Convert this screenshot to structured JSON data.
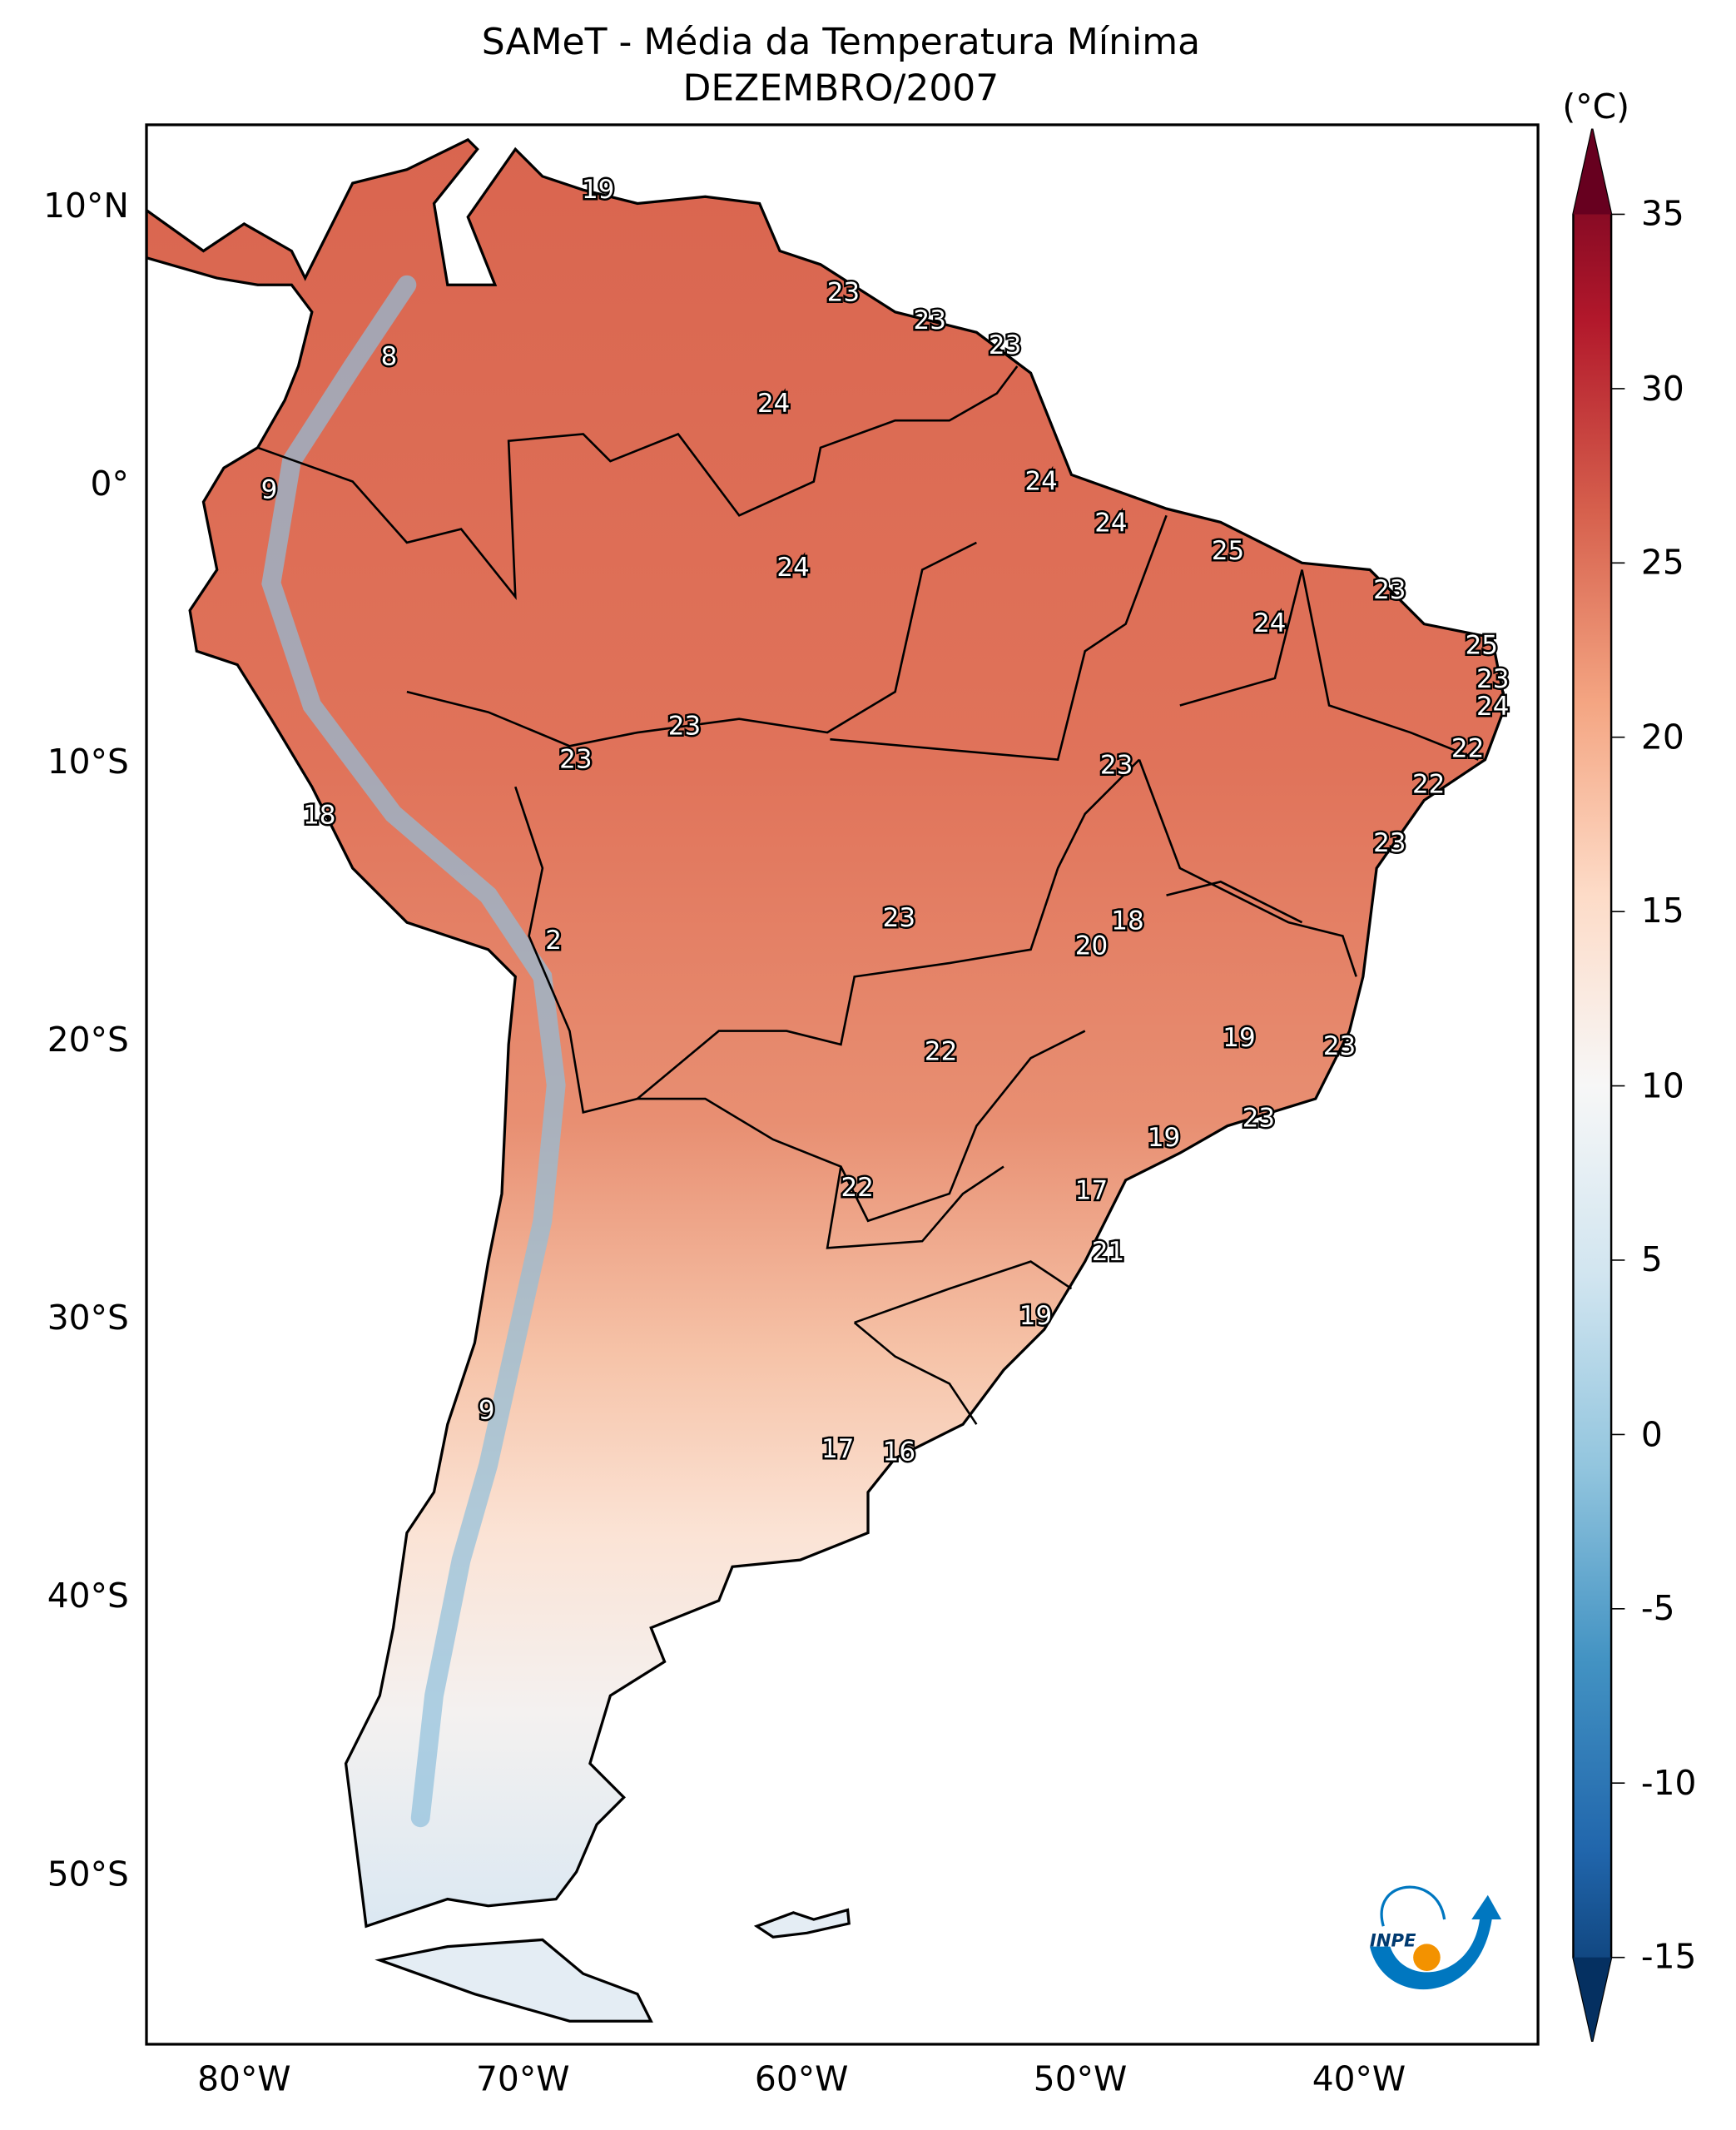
{
  "title": "SAMeT - Média da Temperatura Mínima",
  "subtitle": "DEZEMBRO/2007",
  "colorbar": {
    "unit_label": "(°C)",
    "range": [
      -15,
      35
    ],
    "extend": "both",
    "colormap": "RdBu_r",
    "ticks": [
      "35",
      "30",
      "25",
      "20",
      "15",
      "10",
      "5",
      "0",
      "-5",
      "-10",
      "-15"
    ]
  },
  "axes": {
    "lat_ticks": [
      "10°N",
      "0°",
      "10°S",
      "20°S",
      "30°S",
      "40°S",
      "50°S"
    ],
    "lon_ticks": [
      "80°W",
      "70°W",
      "60°W",
      "50°W",
      "40°W"
    ],
    "lon_range": [
      -83.5,
      -33.6
    ],
    "lat_range": [
      -56,
      13
    ]
  },
  "stations": [
    {
      "value": "19",
      "lon": -67.3,
      "lat": 10.6
    },
    {
      "value": "23",
      "lon": -58.5,
      "lat": 6.9
    },
    {
      "value": "23",
      "lon": -55.4,
      "lat": 5.9
    },
    {
      "value": "23",
      "lon": -52.7,
      "lat": 5.0
    },
    {
      "value": "8",
      "lon": -74.8,
      "lat": 4.6
    },
    {
      "value": "24",
      "lon": -61.0,
      "lat": 2.9
    },
    {
      "value": "9",
      "lon": -79.1,
      "lat": -0.2
    },
    {
      "value": "24",
      "lon": -51.4,
      "lat": 0.1
    },
    {
      "value": "24",
      "lon": -48.9,
      "lat": -1.4
    },
    {
      "value": "25",
      "lon": -44.7,
      "lat": -2.4
    },
    {
      "value": "24",
      "lon": -60.3,
      "lat": -3.0
    },
    {
      "value": "23",
      "lon": -38.9,
      "lat": -3.8
    },
    {
      "value": "24",
      "lon": -43.2,
      "lat": -5.0
    },
    {
      "value": "25",
      "lon": -35.6,
      "lat": -5.8
    },
    {
      "value": "23",
      "lon": -35.2,
      "lat": -7.0
    },
    {
      "value": "24",
      "lon": -35.2,
      "lat": -8.0
    },
    {
      "value": "23",
      "lon": -64.2,
      "lat": -8.7
    },
    {
      "value": "23",
      "lon": -68.1,
      "lat": -9.9
    },
    {
      "value": "22",
      "lon": -36.1,
      "lat": -9.5
    },
    {
      "value": "23",
      "lon": -48.7,
      "lat": -10.1
    },
    {
      "value": "22",
      "lon": -37.5,
      "lat": -10.8
    },
    {
      "value": "18",
      "lon": -77.3,
      "lat": -11.9
    },
    {
      "value": "23",
      "lon": -38.9,
      "lat": -12.9
    },
    {
      "value": "23",
      "lon": -56.5,
      "lat": -15.6
    },
    {
      "value": "18",
      "lon": -48.3,
      "lat": -15.7
    },
    {
      "value": "2",
      "lon": -68.9,
      "lat": -16.4
    },
    {
      "value": "20",
      "lon": -49.6,
      "lat": -16.6
    },
    {
      "value": "19",
      "lon": -44.3,
      "lat": -19.9
    },
    {
      "value": "23",
      "lon": -40.7,
      "lat": -20.2
    },
    {
      "value": "22",
      "lon": -55.0,
      "lat": -20.4
    },
    {
      "value": "23",
      "lon": -43.6,
      "lat": -22.8
    },
    {
      "value": "19",
      "lon": -47.0,
      "lat": -23.5
    },
    {
      "value": "22",
      "lon": -58.0,
      "lat": -25.3
    },
    {
      "value": "17",
      "lon": -49.6,
      "lat": -25.4
    },
    {
      "value": "21",
      "lon": -49.0,
      "lat": -27.6
    },
    {
      "value": "19",
      "lon": -51.6,
      "lat": -29.9
    },
    {
      "value": "9",
      "lon": -71.3,
      "lat": -33.3
    },
    {
      "value": "17",
      "lon": -58.7,
      "lat": -34.7
    },
    {
      "value": "16",
      "lon": -56.5,
      "lat": -34.8
    }
  ],
  "logo": {
    "text": "INPE",
    "colors": {
      "blue": "#0077c0",
      "orange": "#f39200"
    }
  }
}
